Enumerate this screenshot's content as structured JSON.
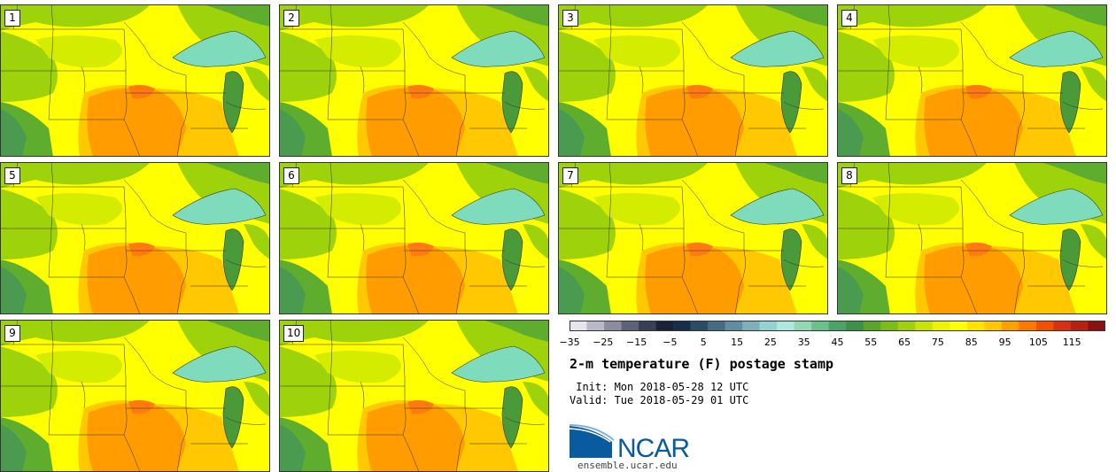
{
  "panels": [
    {
      "label": "1"
    },
    {
      "label": "2"
    },
    {
      "label": "3"
    },
    {
      "label": "4"
    },
    {
      "label": "5"
    },
    {
      "label": "6"
    },
    {
      "label": "7"
    },
    {
      "label": "8"
    },
    {
      "label": "9"
    },
    {
      "label": "10"
    }
  ],
  "colorbar": {
    "min": -35,
    "max": 120,
    "step": 5,
    "ticks": [
      "−35",
      "−25",
      "−15",
      "−5",
      "5",
      "15",
      "25",
      "35",
      "45",
      "55",
      "65",
      "75",
      "85",
      "95",
      "105",
      "115"
    ],
    "colors": [
      "#e6e6ee",
      "#b8b8c8",
      "#8c8ca0",
      "#5e6278",
      "#3a3f58",
      "#1a2238",
      "#172e4a",
      "#2b4c68",
      "#446a84",
      "#5f8ea4",
      "#7bb0bc",
      "#95d3d3",
      "#aee8dc",
      "#93d8b4",
      "#6cc08e",
      "#4aa468",
      "#3e9248",
      "#5aa52a",
      "#7cbc18",
      "#a2d010",
      "#c8e400",
      "#ecf400",
      "#ffff00",
      "#ffe400",
      "#ffc800",
      "#ffa000",
      "#ff7800",
      "#f05000",
      "#d83010",
      "#b82010",
      "#8c1010"
    ]
  },
  "title": "2-m temperature (F) postage stamp",
  "init": " Init: Mon 2018-05-28 12 UTC",
  "valid": "Valid: Tue 2018-05-29 01 UTC",
  "logo": {
    "text": "NCAR",
    "url": "ensemble.ucar.edu",
    "color": "#0a5aa0"
  },
  "map_colors": {
    "hot": "#ff9c00",
    "warm": "#ffc800",
    "mild": "#ffff00",
    "cool": "#d4ec00",
    "cooler": "#9ed20a",
    "cold": "#5fad2e",
    "lake": "#7edcbc"
  }
}
